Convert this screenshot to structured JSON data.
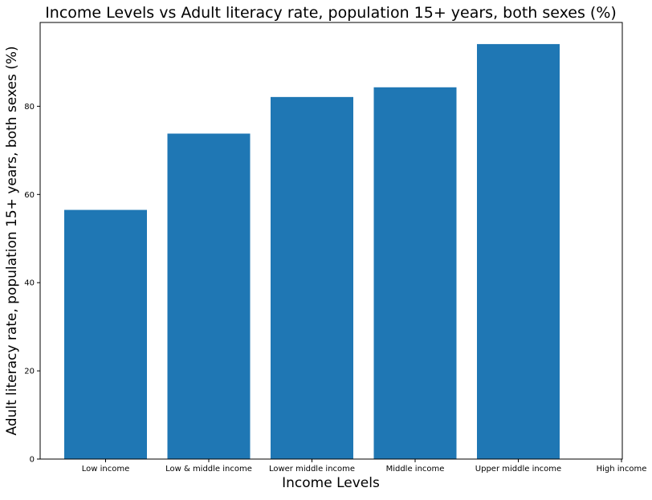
{
  "chart_data": {
    "type": "bar",
    "title": "Income Levels vs Adult literacy rate, population 15+ years, both sexes (%)",
    "xlabel": "Income Levels",
    "ylabel": "Adult literacy rate, population 15+ years, both sexes (%)",
    "categories": [
      "Low income",
      "Low & middle income",
      "Lower middle income",
      "Middle income",
      "Upper middle income",
      "High income"
    ],
    "values": [
      56.5,
      73.8,
      82.1,
      84.3,
      94.1,
      null
    ],
    "ylim": [
      0,
      99
    ],
    "yticks": [
      0,
      20,
      40,
      60,
      80
    ],
    "bar_color": "#1f77b4",
    "grid": false,
    "legend": "none"
  }
}
